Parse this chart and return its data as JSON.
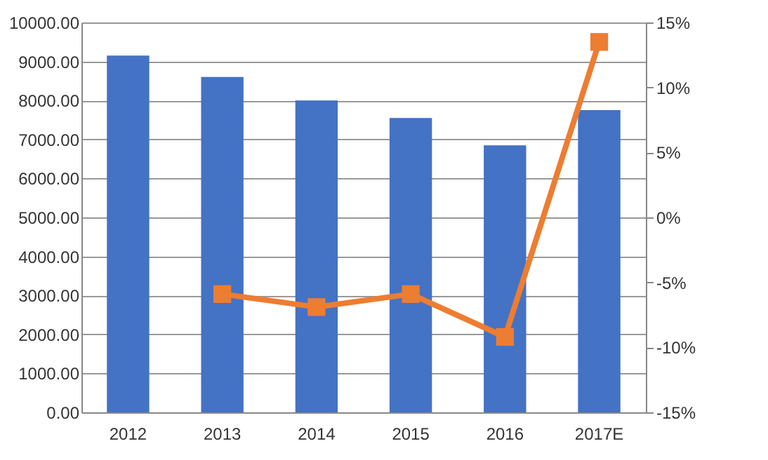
{
  "chart_data": {
    "type": "bar",
    "categories": [
      "2012",
      "2013",
      "2014",
      "2015",
      "2016",
      "2017E"
    ],
    "series": [
      {
        "color": "#4472c4",
        "values": [
          9150,
          8600,
          8000,
          7550,
          6850,
          7750
        ]
      },
      {
        "type": "line",
        "axis": "y2",
        "color": "#ed7d31",
        "marker": "square",
        "values": [
          null,
          -5.9,
          -6.9,
          -5.9,
          -9.2,
          13.5
        ]
      }
    ],
    "ylim": [
      0,
      10000
    ],
    "yticks": [
      {
        "value": 0,
        "label": "0.00"
      },
      {
        "value": 1000,
        "label": "1000.00"
      },
      {
        "value": 2000,
        "label": "2000.00"
      },
      {
        "value": 3000,
        "label": "3000.00"
      },
      {
        "value": 4000,
        "label": "4000.00"
      },
      {
        "value": 5000,
        "label": "5000.00"
      },
      {
        "value": 6000,
        "label": "6000.00"
      },
      {
        "value": 7000,
        "label": "7000.00"
      },
      {
        "value": 8000,
        "label": "8000.00"
      },
      {
        "value": 9000,
        "label": "9000.00"
      },
      {
        "value": 10000,
        "label": "10000.00"
      }
    ],
    "y2lim": [
      -15,
      15
    ],
    "y2ticks": [
      {
        "value": -15,
        "label": "-15%"
      },
      {
        "value": -10,
        "label": "-10%"
      },
      {
        "value": -5,
        "label": "-5%"
      },
      {
        "value": 0,
        "label": "0%"
      },
      {
        "value": 5,
        "label": "5%"
      },
      {
        "value": 10,
        "label": "10%"
      },
      {
        "value": 15,
        "label": "15%"
      }
    ],
    "grid": "y"
  }
}
